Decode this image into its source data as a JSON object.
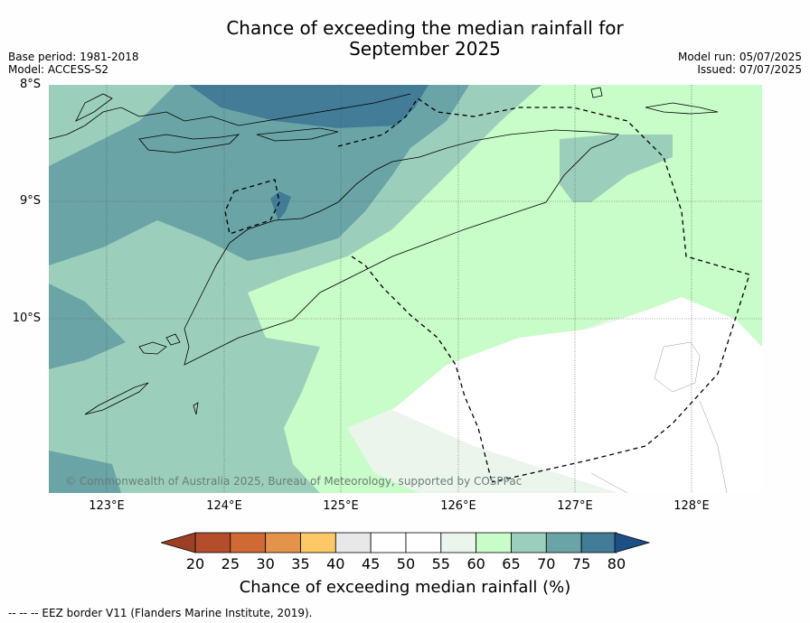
{
  "title": "Chance of exceeding the median rainfall for\nSeptember 2025",
  "meta": {
    "base_period": "Base period: 1981-2018",
    "model": "Model: ACCESS-S2",
    "model_run": "Model run: 05/07/2025",
    "issued": "Issued: 07/07/2025"
  },
  "map": {
    "copyright": "© Commonwealth of Australia 2025, Bureau of Meteorology, supported by COSPPac",
    "lat_labels": [
      "8°S",
      "9°S",
      "10°S"
    ],
    "lon_labels": [
      "123°E",
      "124°E",
      "125°E",
      "126°E",
      "127°E",
      "128°E"
    ]
  },
  "colorbar": {
    "title": "Chance of exceeding median rainfall (%)",
    "ticks": [
      "20",
      "25",
      "30",
      "35",
      "40",
      "45",
      "50",
      "55",
      "60",
      "65",
      "70",
      "75",
      "80"
    ],
    "colors": [
      "#b34d2b",
      "#cf6a34",
      "#e3944a",
      "#fdc967",
      "#e8e8e8",
      "#ffffff",
      "#ffffff",
      "#ebf5ec",
      "#c8fcc8",
      "#9ccfbb",
      "#6aa4a6",
      "#427c97"
    ],
    "under_color": "#9c3f25",
    "over_color": "#1b4f86"
  },
  "footer": "--  --  -- EEZ border V11 (Flanders Marine Institute, 2019)."
}
